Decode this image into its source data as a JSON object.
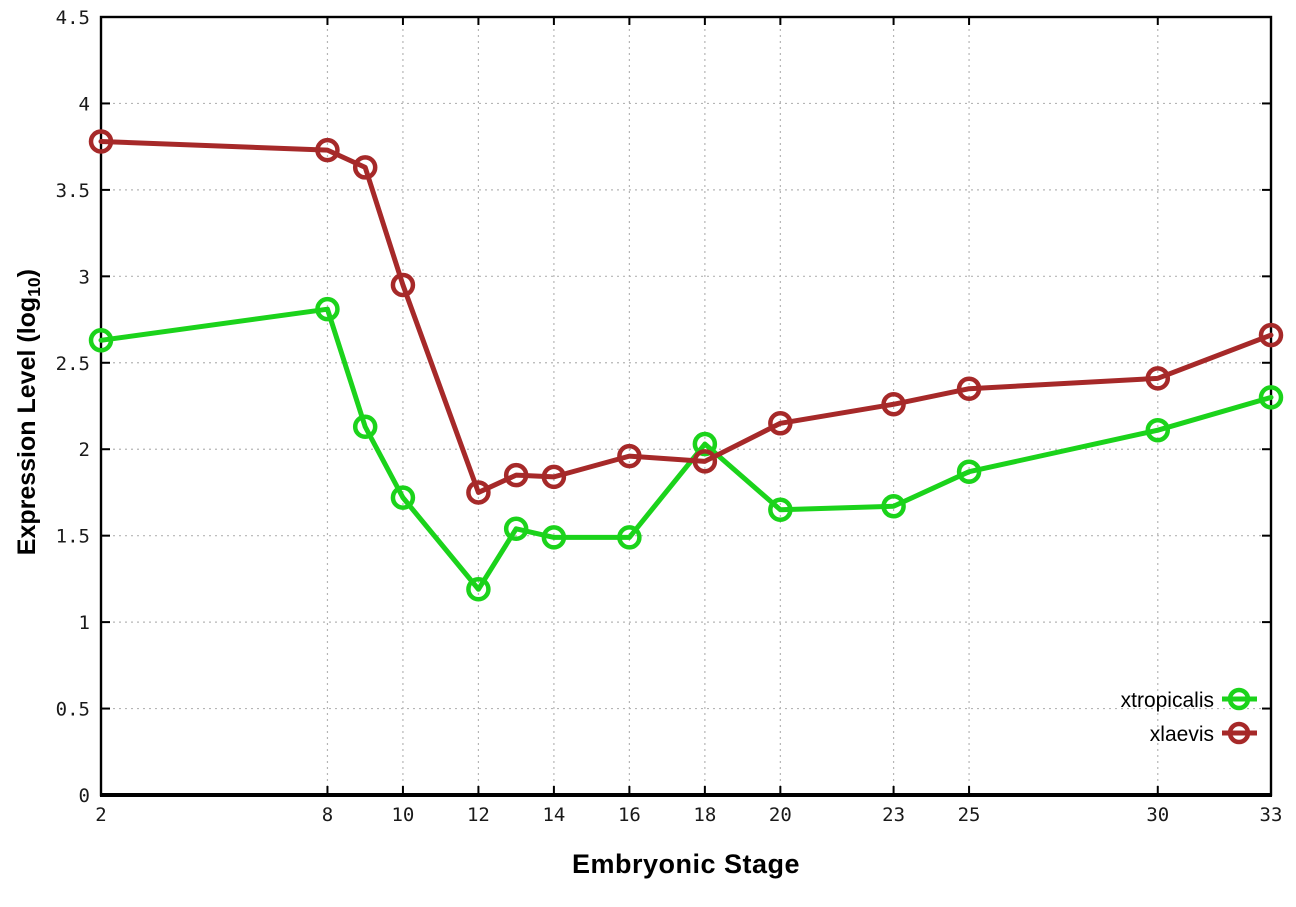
{
  "chart_data": {
    "type": "line",
    "title": "",
    "xlabel": "Embryonic Stage",
    "ylabel": {
      "pre": "Expression Level (log",
      "sub": "10",
      "post": ")"
    },
    "xlim": [
      2,
      33
    ],
    "ylim": [
      0,
      4.5
    ],
    "x_ticks": [
      2,
      8,
      10,
      12,
      14,
      16,
      18,
      20,
      23,
      25,
      30,
      33
    ],
    "y_ticks": [
      0,
      0.5,
      1,
      1.5,
      2,
      2.5,
      3,
      3.5,
      4,
      4.5
    ],
    "grid": true,
    "x": [
      2,
      8,
      9,
      10,
      12,
      13,
      14,
      16,
      18,
      20,
      23,
      25,
      30,
      33
    ],
    "series": [
      {
        "name": "xtropicalis",
        "color": "#1bd31b",
        "marker": "open-circle",
        "values": [
          2.63,
          2.81,
          2.13,
          1.72,
          1.19,
          1.54,
          1.49,
          1.49,
          2.03,
          1.65,
          1.67,
          1.87,
          2.11,
          2.3
        ]
      },
      {
        "name": "xlaevis",
        "color": "#a62929",
        "marker": "open-circle",
        "values": [
          3.78,
          3.73,
          3.63,
          2.95,
          1.75,
          1.85,
          1.84,
          1.96,
          1.93,
          2.15,
          2.26,
          2.35,
          2.41,
          2.66
        ]
      }
    ],
    "legend": {
      "position": "bottom-right",
      "entries": [
        "xtropicalis",
        "xlaevis"
      ]
    },
    "colors": {
      "background": "#ffffff",
      "axis": "#000000",
      "grid": "#b5b5b5"
    }
  }
}
